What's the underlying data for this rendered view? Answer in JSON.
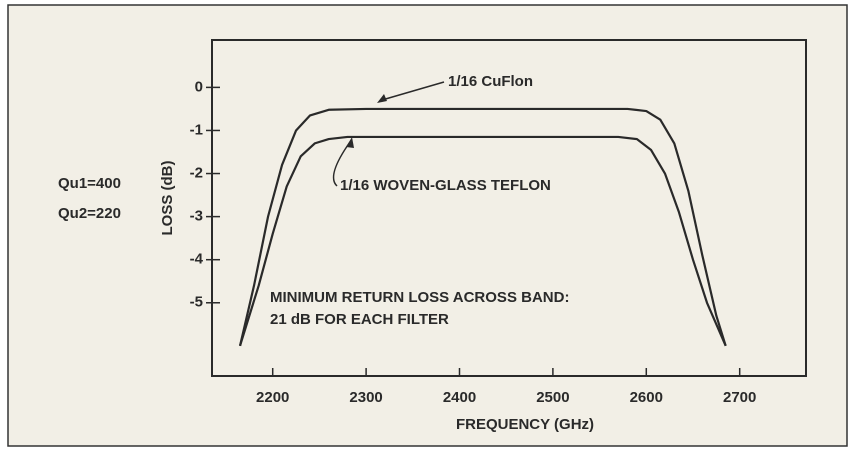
{
  "chart_data": {
    "type": "line",
    "x_label": "FREQUENCY (GHz)",
    "y_label": "LOSS (dB)",
    "annotations": [
      "1/16 CuFlon",
      "1/16 WOVEN-GLASS TEFLON",
      "MINIMUM RETURN LOSS ACROSS BAND:",
      "21 dB FOR EACH FILTER",
      "Qu1=400",
      "Qu2=220"
    ],
    "xlim": [
      2135,
      2771
    ],
    "xticks": [
      2200,
      2300,
      2400,
      2500,
      2600,
      2700
    ],
    "ylim": [
      -6.7,
      1.1
    ],
    "yticks": [
      0,
      -1,
      -2,
      -3,
      -4,
      -5
    ],
    "series": [
      {
        "name": "1/16 CuFlon",
        "color": "#2a2a2a",
        "x": [
          2165,
          2180,
          2195,
          2210,
          2225,
          2240,
          2260,
          2300,
          2400,
          2500,
          2580,
          2600,
          2615,
          2630,
          2645,
          2660,
          2675,
          2685
        ],
        "values": [
          -6.0,
          -4.6,
          -3.0,
          -1.8,
          -1.0,
          -0.65,
          -0.52,
          -0.5,
          -0.5,
          -0.5,
          -0.5,
          -0.55,
          -0.75,
          -1.3,
          -2.4,
          -3.9,
          -5.3,
          -6.0
        ]
      },
      {
        "name": "1/16 WOVEN-GLASS TEFLON",
        "color": "#2a2a2a",
        "x": [
          2165,
          2185,
          2200,
          2215,
          2230,
          2245,
          2260,
          2280,
          2300,
          2400,
          2500,
          2570,
          2590,
          2605,
          2620,
          2635,
          2650,
          2665,
          2685
        ],
        "values": [
          -6.0,
          -4.6,
          -3.4,
          -2.3,
          -1.6,
          -1.3,
          -1.2,
          -1.15,
          -1.15,
          -1.15,
          -1.15,
          -1.15,
          -1.2,
          -1.45,
          -2.0,
          -2.9,
          -4.0,
          -5.0,
          -6.0
        ]
      }
    ]
  }
}
